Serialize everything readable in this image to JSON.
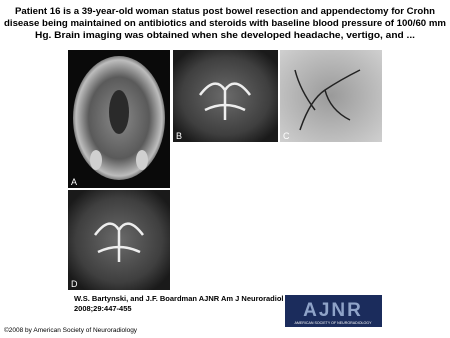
{
  "title": {
    "lines": [
      "Patient 16 is a 39-year-old woman status post bowel resection and appendectomy for Crohn",
      "disease being maintained on antibiotics and steroids with baseline blood pressure of 100/60 mm",
      "Hg. Brain imaging was obtained when she developed headache, vertigo, and ..."
    ]
  },
  "figure": {
    "panels": [
      "A",
      "B",
      "C",
      "D"
    ]
  },
  "citation": {
    "lines": [
      "W.S. Bartynski, and J.F. Boardman AJNR Am J Neuroradiol",
      "2008;29:447-455"
    ]
  },
  "logo": {
    "name": "AJNR",
    "subtitle": "AMERICAN SOCIETY OF NEURORADIOLOGY"
  },
  "copyright": "©2008 by American Society of Neuroradiology"
}
